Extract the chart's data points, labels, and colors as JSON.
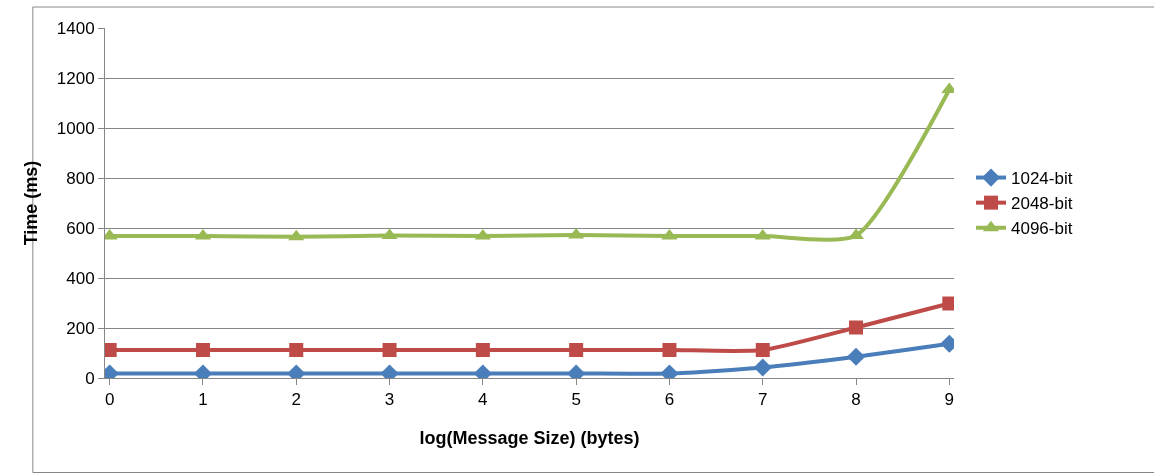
{
  "chart_data": {
    "type": "line",
    "xlabel": "log(Message Size) (bytes)",
    "ylabel": "Time (ms)",
    "categories": [
      "0",
      "1",
      "2",
      "3",
      "4",
      "5",
      "6",
      "7",
      "8",
      "9"
    ],
    "series": [
      {
        "name": "1024-bit",
        "color": "#4a7ebb",
        "marker": "diamond",
        "values": [
          18,
          18,
          18,
          18,
          18,
          18,
          18,
          42,
          85,
          137
        ]
      },
      {
        "name": "2048-bit",
        "color": "#be4b48",
        "marker": "square",
        "values": [
          112,
          112,
          112,
          112,
          112,
          112,
          112,
          112,
          202,
          298
        ]
      },
      {
        "name": "4096-bit",
        "color": "#98b954",
        "marker": "triangle",
        "values": [
          568,
          568,
          565,
          570,
          568,
          572,
          568,
          568,
          570,
          1154
        ]
      }
    ],
    "ylim": [
      0,
      1400
    ],
    "yticks": [
      0,
      200,
      400,
      600,
      800,
      1000,
      1200,
      1400
    ],
    "grid": "y",
    "legend": "right",
    "line_style": "solid"
  }
}
